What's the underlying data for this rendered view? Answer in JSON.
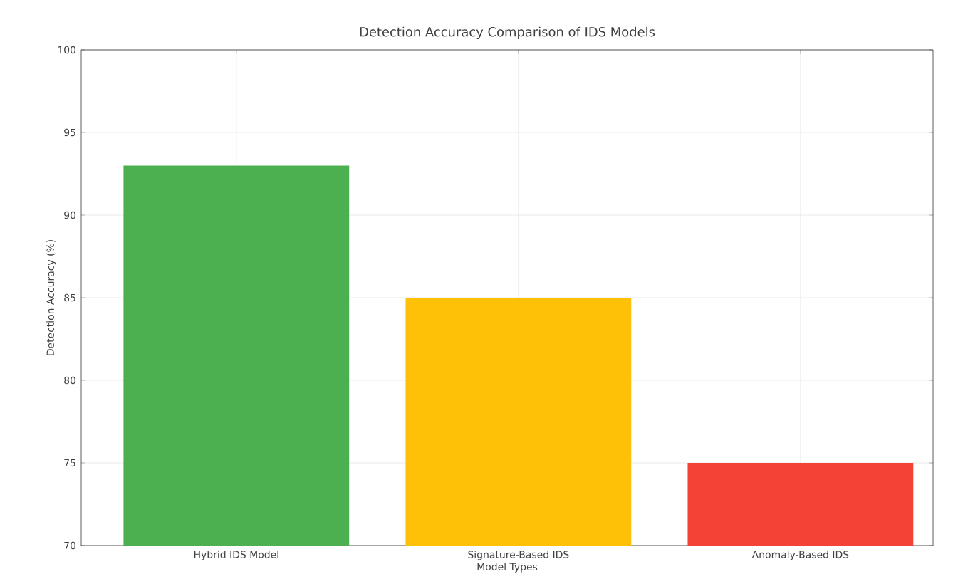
{
  "chart_data": {
    "type": "bar",
    "title": "Detection Accuracy Comparison of IDS Models",
    "xlabel": "Model Types",
    "ylabel": "Detection Accuracy (%)",
    "categories": [
      "Hybrid IDS Model",
      "Signature-Based IDS",
      "Anomaly-Based IDS"
    ],
    "values": [
      93,
      85,
      75
    ],
    "colors": [
      "#4caf50",
      "#ffc107",
      "#f44336"
    ],
    "ylim": [
      70,
      100
    ],
    "yticks": [
      70,
      75,
      80,
      85,
      90,
      95,
      100
    ],
    "grid": true
  }
}
